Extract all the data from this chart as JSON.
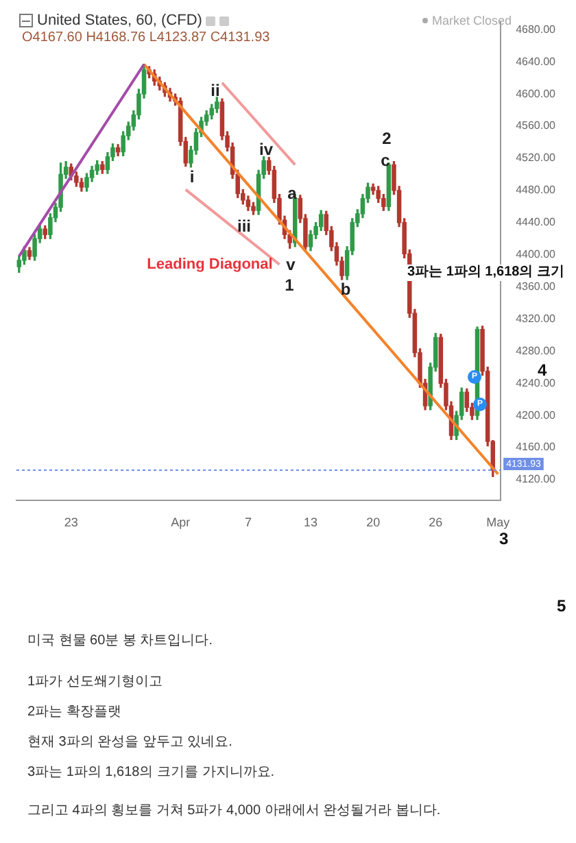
{
  "chart_data": {
    "type": "candlestick",
    "title": "United States, 60, (CFD)",
    "subtitle": "O4167.60 H4168.76 L4123.87 C4131.93",
    "categories": [
      null,
      null,
      null,
      null,
      null,
      null,
      null,
      null,
      null,
      null,
      "23",
      null,
      null,
      null,
      null,
      null,
      null,
      null,
      null,
      null,
      null,
      null,
      null,
      null,
      null,
      null,
      null,
      null,
      null,
      null,
      null,
      "Apr",
      null,
      null,
      null,
      null,
      null,
      null,
      null,
      null,
      null,
      null,
      null,
      null,
      "7",
      null,
      null,
      null,
      null,
      null,
      null,
      null,
      null,
      null,
      null,
      null,
      "13",
      null,
      null,
      null,
      null,
      null,
      null,
      null,
      null,
      null,
      null,
      null,
      "20",
      null,
      null,
      null,
      null,
      null,
      null,
      null,
      null,
      null,
      null,
      null,
      "26",
      null,
      null,
      null,
      null,
      null,
      null,
      null,
      null,
      null,
      null,
      null,
      "May"
    ],
    "ohlc": [
      [
        4385,
        4398,
        4378,
        4393
      ],
      [
        4393,
        4410,
        4388,
        4405
      ],
      [
        4405,
        4409,
        4394,
        4398
      ],
      [
        4398,
        4425,
        4393,
        4420
      ],
      [
        4420,
        4437,
        4415,
        4432
      ],
      [
        4432,
        4436,
        4420,
        4425
      ],
      [
        4425,
        4451,
        4420,
        4446
      ],
      [
        4446,
        4464,
        4441,
        4459
      ],
      [
        4459,
        4514,
        4454,
        4500
      ],
      [
        4500,
        4516,
        4495,
        4509
      ],
      [
        4509,
        4513,
        4493,
        4498
      ],
      [
        4498,
        4503,
        4485,
        4490
      ],
      [
        4490,
        4495,
        4479,
        4484
      ],
      [
        4484,
        4501,
        4479,
        4496
      ],
      [
        4496,
        4510,
        4491,
        4505
      ],
      [
        4505,
        4517,
        4500,
        4512
      ],
      [
        4512,
        4516,
        4501,
        4506
      ],
      [
        4506,
        4527,
        4501,
        4522
      ],
      [
        4522,
        4538,
        4517,
        4533
      ],
      [
        4533,
        4537,
        4523,
        4528
      ],
      [
        4528,
        4553,
        4523,
        4548
      ],
      [
        4548,
        4565,
        4543,
        4560
      ],
      [
        4560,
        4579,
        4555,
        4574
      ],
      [
        4574,
        4606,
        4569,
        4600
      ],
      [
        4600,
        4637,
        4595,
        4630
      ],
      [
        4630,
        4634,
        4620,
        4625
      ],
      [
        4625,
        4630,
        4611,
        4616
      ],
      [
        4616,
        4621,
        4605,
        4610
      ],
      [
        4610,
        4614,
        4597,
        4602
      ],
      [
        4602,
        4607,
        4591,
        4596
      ],
      [
        4596,
        4600,
        4586,
        4591
      ],
      [
        4591,
        4595,
        4536,
        4541
      ],
      [
        4541,
        4546,
        4510,
        4514
      ],
      [
        4514,
        4535,
        4509,
        4530
      ],
      [
        4530,
        4557,
        4525,
        4552
      ],
      [
        4552,
        4571,
        4547,
        4566
      ],
      [
        4566,
        4579,
        4561,
        4574
      ],
      [
        4574,
        4587,
        4569,
        4582
      ],
      [
        4582,
        4596,
        4577,
        4590
      ],
      [
        4590,
        4594,
        4543,
        4548
      ],
      [
        4548,
        4553,
        4529,
        4534
      ],
      [
        4534,
        4539,
        4495,
        4500
      ],
      [
        4500,
        4505,
        4471,
        4476
      ],
      [
        4476,
        4481,
        4463,
        4468
      ],
      [
        4468,
        4473,
        4455,
        4460
      ],
      [
        4460,
        4465,
        4450,
        4455
      ],
      [
        4455,
        4505,
        4450,
        4500
      ],
      [
        4500,
        4522,
        4495,
        4517
      ],
      [
        4517,
        4521,
        4500,
        4505
      ],
      [
        4505,
        4510,
        4465,
        4470
      ],
      [
        4470,
        4475,
        4438,
        4443
      ],
      [
        4443,
        4448,
        4420,
        4425
      ],
      [
        4425,
        4430,
        4408,
        4415
      ],
      [
        4415,
        4475,
        4410,
        4470
      ],
      [
        4470,
        4474,
        4440,
        4445
      ],
      [
        4445,
        4450,
        4405,
        4410
      ],
      [
        4410,
        4430,
        4405,
        4425
      ],
      [
        4425,
        4440,
        4420,
        4435
      ],
      [
        4435,
        4455,
        4430,
        4450
      ],
      [
        4450,
        4454,
        4425,
        4430
      ],
      [
        4430,
        4435,
        4405,
        4410
      ],
      [
        4410,
        4415,
        4387,
        4392
      ],
      [
        4392,
        4397,
        4369,
        4374
      ],
      [
        4374,
        4410,
        4369,
        4405
      ],
      [
        4405,
        4445,
        4400,
        4440
      ],
      [
        4440,
        4456,
        4435,
        4451
      ],
      [
        4451,
        4475,
        4446,
        4470
      ],
      [
        4470,
        4489,
        4465,
        4484
      ],
      [
        4484,
        4488,
        4475,
        4480
      ],
      [
        4480,
        4485,
        4465,
        4470
      ],
      [
        4470,
        4475,
        4455,
        4460
      ],
      [
        4460,
        4514,
        4455,
        4512
      ],
      [
        4512,
        4516,
        4475,
        4480
      ],
      [
        4480,
        4485,
        4435,
        4440
      ],
      [
        4440,
        4445,
        4396,
        4401
      ],
      [
        4401,
        4406,
        4322,
        4327
      ],
      [
        4327,
        4332,
        4273,
        4278
      ],
      [
        4278,
        4283,
        4235,
        4240
      ],
      [
        4240,
        4245,
        4207,
        4212
      ],
      [
        4212,
        4265,
        4207,
        4260
      ],
      [
        4260,
        4302,
        4255,
        4297
      ],
      [
        4297,
        4301,
        4235,
        4240
      ],
      [
        4240,
        4245,
        4207,
        4212
      ],
      [
        4212,
        4217,
        4170,
        4175
      ],
      [
        4175,
        4205,
        4170,
        4200
      ],
      [
        4200,
        4234,
        4195,
        4229
      ],
      [
        4229,
        4233,
        4205,
        4210
      ],
      [
        4210,
        4215,
        4195,
        4200
      ],
      [
        4200,
        4310,
        4195,
        4307
      ],
      [
        4307,
        4311,
        4250,
        4255
      ],
      [
        4255,
        4260,
        4162,
        4167.6
      ],
      [
        4167.6,
        4168.76,
        4123.87,
        4131.93
      ],
      null
    ],
    "series": [
      {
        "type": "line",
        "color": "#a44ca8",
        "values": [
          4398,
          null,
          null,
          null,
          null,
          null,
          null,
          null,
          null,
          null,
          null,
          null,
          null,
          null,
          null,
          null,
          null,
          null,
          null,
          null,
          null,
          null,
          null,
          null,
          4637,
          null,
          null,
          null,
          null,
          null,
          null,
          null,
          null,
          null,
          null,
          null,
          null,
          null,
          null,
          null,
          null,
          null,
          null,
          null,
          null,
          null,
          null,
          null,
          null,
          null,
          null,
          null,
          null,
          null,
          null,
          null,
          null,
          null,
          null,
          null,
          null,
          null,
          null,
          null,
          null,
          null,
          null,
          null,
          null,
          null,
          null,
          null,
          null,
          null,
          null,
          null,
          null,
          null,
          null,
          null,
          null,
          null,
          null,
          null,
          null,
          null,
          null,
          null,
          null,
          null,
          null,
          null,
          null
        ]
      },
      {
        "type": "line",
        "color": "#f5822a",
        "values": [
          null,
          null,
          null,
          null,
          null,
          null,
          null,
          null,
          null,
          null,
          null,
          null,
          null,
          null,
          null,
          null,
          null,
          null,
          null,
          null,
          null,
          null,
          null,
          null,
          4637,
          null,
          null,
          null,
          null,
          null,
          null,
          null,
          null,
          null,
          null,
          null,
          null,
          null,
          null,
          null,
          null,
          null,
          null,
          null,
          null,
          null,
          null,
          null,
          null,
          null,
          null,
          null,
          null,
          null,
          null,
          null,
          null,
          null,
          null,
          null,
          null,
          null,
          null,
          null,
          null,
          null,
          null,
          null,
          null,
          null,
          null,
          null,
          null,
          null,
          null,
          null,
          null,
          null,
          null,
          null,
          null,
          null,
          null,
          null,
          null,
          null,
          null,
          null,
          null,
          null,
          null,
          null,
          4127
        ]
      },
      {
        "type": "line",
        "color": "#f29a9a",
        "values": [
          null,
          null,
          null,
          null,
          null,
          null,
          null,
          null,
          null,
          null,
          null,
          null,
          null,
          null,
          null,
          null,
          null,
          null,
          null,
          null,
          null,
          null,
          null,
          null,
          null,
          null,
          null,
          null,
          null,
          null,
          null,
          null,
          null,
          null,
          null,
          null,
          null,
          null,
          null,
          4614,
          null,
          null,
          null,
          null,
          null,
          null,
          null,
          null,
          null,
          null,
          null,
          null,
          null,
          4512,
          null,
          null,
          null,
          null,
          null,
          null,
          null,
          null,
          null,
          null,
          null,
          null,
          null,
          null,
          null,
          null,
          null,
          null,
          null,
          null,
          null,
          null,
          null,
          null,
          null,
          null,
          null,
          null,
          null,
          null,
          null,
          null,
          null,
          null,
          null,
          null,
          null,
          null,
          null
        ]
      },
      {
        "type": "line",
        "color": "#f29a9a",
        "values": [
          null,
          null,
          null,
          null,
          null,
          null,
          null,
          null,
          null,
          null,
          null,
          null,
          null,
          null,
          null,
          null,
          null,
          null,
          null,
          null,
          null,
          null,
          null,
          null,
          null,
          null,
          null,
          null,
          null,
          null,
          null,
          null,
          4481,
          null,
          null,
          null,
          null,
          null,
          null,
          null,
          null,
          null,
          null,
          null,
          null,
          null,
          null,
          null,
          null,
          null,
          4388,
          null,
          null,
          null,
          null,
          null,
          null,
          null,
          null,
          null,
          null,
          null,
          null,
          null,
          null,
          null,
          null,
          null,
          null,
          null,
          null,
          null,
          null,
          null,
          null,
          null,
          null,
          null,
          null,
          null,
          null,
          null,
          null,
          null,
          null,
          null,
          null,
          null,
          null,
          null,
          null,
          null,
          null
        ]
      }
    ],
    "ylim": [
      4094,
      4690
    ],
    "yticks": [
      {
        "value": 4120,
        "label": "4120.00"
      },
      {
        "value": 4160,
        "label": "4160.00"
      },
      {
        "value": 4200,
        "label": "4200.00"
      },
      {
        "value": 4240,
        "label": "4240.00"
      },
      {
        "value": 4280,
        "label": "4280.00"
      },
      {
        "value": 4320,
        "label": "4320.00"
      },
      {
        "value": 4360,
        "label": "4360.00"
      },
      {
        "value": 4400,
        "label": "4400.00"
      },
      {
        "value": 4440,
        "label": "4440.00"
      },
      {
        "value": 4480,
        "label": "4480.00"
      },
      {
        "value": 4520,
        "label": "4520.00"
      },
      {
        "value": 4560,
        "label": "4560.00"
      },
      {
        "value": 4600,
        "label": "4600.00"
      },
      {
        "value": 4640,
        "label": "4640.00"
      },
      {
        "value": 4680,
        "label": "4680.00"
      }
    ],
    "ref_lines": [
      {
        "axis": "y",
        "value": 4131.93,
        "label": "4131.93",
        "color": "#6f8fe8",
        "line_style": "dotted"
      }
    ],
    "grid": false,
    "annotations": [
      "ii",
      "i",
      "iii",
      "iv",
      "v",
      "1",
      "a",
      "b",
      "c",
      "2",
      "Leading Diagonal",
      "Market Closed",
      "3파는 1파의 1,618의 크기",
      "3",
      "4",
      "5",
      "P",
      "P",
      "미국 현물 60분 봉 차트입니다.",
      "1파가 선도쐐기형이고",
      "2파는 확장플랫",
      "현재 3파의 완성을 앞두고 있네요.",
      "3파는 1파의 1,618의 크기를 가지니까요.",
      "그리고 4파의 횡보를 거쳐 5파가 4,000 아래에서 완성될거라 봅니다."
    ]
  }
}
